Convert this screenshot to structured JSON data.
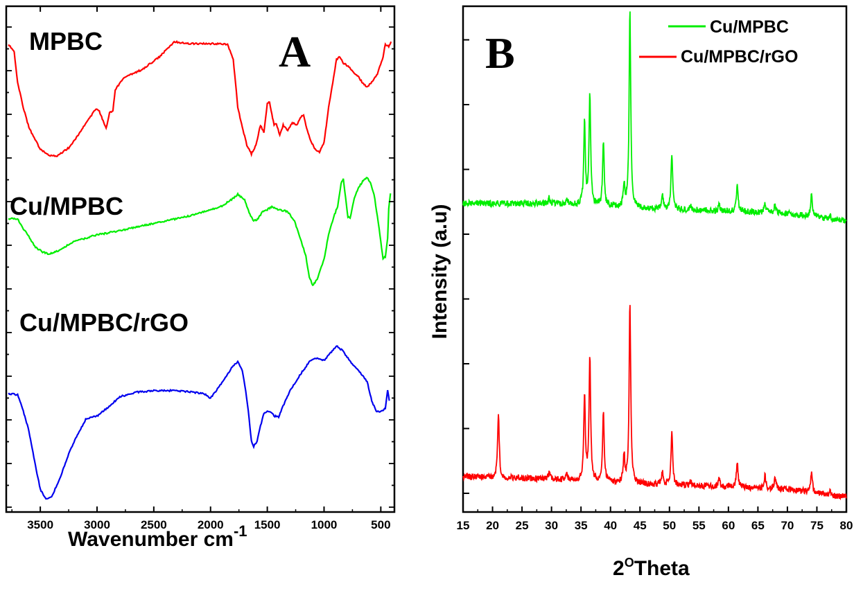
{
  "panels": {
    "a": {
      "letter": "A",
      "xlabel": "Wavenumber cm",
      "xlabel_sup": "-1"
    },
    "b": {
      "letter": "B",
      "ylabel": "Intensity (a.u)",
      "xlabel_pre": "2",
      "xlabel_sup": "O",
      "xlabel_post": "Theta"
    }
  },
  "chart_data": [
    {
      "panel": "A",
      "type": "line",
      "xlabel": "Wavenumber cm-1",
      "ylabel": "",
      "xlim": [
        3800,
        380
      ],
      "x_reversed": true,
      "ylim": [
        0,
        1
      ],
      "y_ticks_labeled": false,
      "x_ticks": [
        "3500",
        "3000",
        "2500",
        "2000",
        "1500",
        "1000",
        "500"
      ],
      "grid": false,
      "legend": "none",
      "annotations": [
        "MPBC",
        "Cu/MPBC",
        "Cu/MPBC/rGO"
      ],
      "series": [
        {
          "name": "MPBC",
          "color": "#ff0000",
          "points": [
            [
              3780,
              0.925
            ],
            [
              3730,
              0.91
            ],
            [
              3700,
              0.85
            ],
            [
              3650,
              0.8
            ],
            [
              3600,
              0.76
            ],
            [
              3500,
              0.717
            ],
            [
              3420,
              0.705
            ],
            [
              3350,
              0.704
            ],
            [
              3250,
              0.72
            ],
            [
              3150,
              0.75
            ],
            [
              3080,
              0.775
            ],
            [
              3010,
              0.797
            ],
            [
              2980,
              0.792
            ],
            [
              2940,
              0.77
            ],
            [
              2920,
              0.758
            ],
            [
              2890,
              0.79
            ],
            [
              2860,
              0.794
            ],
            [
              2840,
              0.835
            ],
            [
              2760,
              0.86
            ],
            [
              2600,
              0.875
            ],
            [
              2450,
              0.9
            ],
            [
              2320,
              0.93
            ],
            [
              2200,
              0.926
            ],
            [
              2000,
              0.926
            ],
            [
              1850,
              0.925
            ],
            [
              1800,
              0.895
            ],
            [
              1760,
              0.8
            ],
            [
              1720,
              0.76
            ],
            [
              1700,
              0.743
            ],
            [
              1680,
              0.725
            ],
            [
              1640,
              0.708
            ],
            [
              1600,
              0.725
            ],
            [
              1560,
              0.765
            ],
            [
              1530,
              0.75
            ],
            [
              1500,
              0.808
            ],
            [
              1480,
              0.81
            ],
            [
              1440,
              0.765
            ],
            [
              1420,
              0.768
            ],
            [
              1390,
              0.745
            ],
            [
              1360,
              0.765
            ],
            [
              1320,
              0.755
            ],
            [
              1280,
              0.77
            ],
            [
              1240,
              0.765
            ],
            [
              1210,
              0.78
            ],
            [
              1180,
              0.786
            ],
            [
              1160,
              0.765
            ],
            [
              1120,
              0.735
            ],
            [
              1070,
              0.714
            ],
            [
              1040,
              0.712
            ],
            [
              1000,
              0.73
            ],
            [
              960,
              0.8
            ],
            [
              930,
              0.84
            ],
            [
              890,
              0.895
            ],
            [
              860,
              0.9
            ],
            [
              830,
              0.888
            ],
            [
              780,
              0.88
            ],
            [
              740,
              0.868
            ],
            [
              700,
              0.862
            ],
            [
              660,
              0.848
            ],
            [
              620,
              0.84
            ],
            [
              580,
              0.85
            ],
            [
              530,
              0.866
            ],
            [
              480,
              0.9
            ],
            [
              460,
              0.925
            ],
            [
              430,
              0.92
            ],
            [
              410,
              0.93
            ]
          ]
        },
        {
          "name": "Cu/MPBC",
          "color": "#00ee00",
          "points": [
            [
              3780,
              0.58
            ],
            [
              3700,
              0.58
            ],
            [
              3650,
              0.56
            ],
            [
              3600,
              0.545
            ],
            [
              3550,
              0.525
            ],
            [
              3480,
              0.514
            ],
            [
              3420,
              0.51
            ],
            [
              3350,
              0.516
            ],
            [
              3200,
              0.535
            ],
            [
              3000,
              0.548
            ],
            [
              2800,
              0.556
            ],
            [
              2600,
              0.566
            ],
            [
              2400,
              0.575
            ],
            [
              2200,
              0.585
            ],
            [
              2000,
              0.597
            ],
            [
              1900,
              0.605
            ],
            [
              1800,
              0.62
            ],
            [
              1760,
              0.628
            ],
            [
              1700,
              0.618
            ],
            [
              1660,
              0.592
            ],
            [
              1620,
              0.575
            ],
            [
              1580,
              0.58
            ],
            [
              1540,
              0.595
            ],
            [
              1500,
              0.598
            ],
            [
              1460,
              0.603
            ],
            [
              1400,
              0.598
            ],
            [
              1320,
              0.594
            ],
            [
              1260,
              0.575
            ],
            [
              1200,
              0.535
            ],
            [
              1160,
              0.505
            ],
            [
              1130,
              0.465
            ],
            [
              1100,
              0.448
            ],
            [
              1060,
              0.46
            ],
            [
              1000,
              0.5
            ],
            [
              960,
              0.548
            ],
            [
              920,
              0.58
            ],
            [
              880,
              0.605
            ],
            [
              850,
              0.65
            ],
            [
              830,
              0.658
            ],
            [
              810,
              0.62
            ],
            [
              790,
              0.584
            ],
            [
              770,
              0.58
            ],
            [
              740,
              0.615
            ],
            [
              700,
              0.64
            ],
            [
              660,
              0.654
            ],
            [
              620,
              0.662
            ],
            [
              590,
              0.65
            ],
            [
              560,
              0.628
            ],
            [
              530,
              0.585
            ],
            [
              500,
              0.535
            ],
            [
              480,
              0.5
            ],
            [
              460,
              0.505
            ],
            [
              440,
              0.54
            ],
            [
              430,
              0.6
            ],
            [
              415,
              0.63
            ]
          ]
        },
        {
          "name": "Cu/MPBC/rGO",
          "color": "#0000ee",
          "points": [
            [
              3780,
              0.234
            ],
            [
              3700,
              0.232
            ],
            [
              3650,
              0.2
            ],
            [
              3600,
              0.16
            ],
            [
              3550,
              0.1
            ],
            [
              3500,
              0.045
            ],
            [
              3450,
              0.025
            ],
            [
              3400,
              0.03
            ],
            [
              3330,
              0.065
            ],
            [
              3250,
              0.115
            ],
            [
              3180,
              0.15
            ],
            [
              3100,
              0.183
            ],
            [
              3000,
              0.19
            ],
            [
              2900,
              0.207
            ],
            [
              2800,
              0.228
            ],
            [
              2650,
              0.237
            ],
            [
              2500,
              0.24
            ],
            [
              2300,
              0.24
            ],
            [
              2150,
              0.237
            ],
            [
              2050,
              0.233
            ],
            [
              2000,
              0.225
            ],
            [
              1900,
              0.255
            ],
            [
              1800,
              0.29
            ],
            [
              1760,
              0.297
            ],
            [
              1720,
              0.28
            ],
            [
              1690,
              0.24
            ],
            [
              1660,
              0.185
            ],
            [
              1640,
              0.14
            ],
            [
              1620,
              0.13
            ],
            [
              1590,
              0.14
            ],
            [
              1560,
              0.17
            ],
            [
              1530,
              0.195
            ],
            [
              1500,
              0.2
            ],
            [
              1470,
              0.198
            ],
            [
              1440,
              0.19
            ],
            [
              1400,
              0.188
            ],
            [
              1360,
              0.21
            ],
            [
              1300,
              0.24
            ],
            [
              1200,
              0.275
            ],
            [
              1120,
              0.3
            ],
            [
              1060,
              0.305
            ],
            [
              1000,
              0.3
            ],
            [
              950,
              0.313
            ],
            [
              890,
              0.328
            ],
            [
              840,
              0.32
            ],
            [
              760,
              0.295
            ],
            [
              680,
              0.275
            ],
            [
              620,
              0.258
            ],
            [
              580,
              0.22
            ],
            [
              540,
              0.2
            ],
            [
              500,
              0.198
            ],
            [
              460,
              0.205
            ],
            [
              440,
              0.24
            ],
            [
              425,
              0.22
            ]
          ]
        }
      ]
    },
    {
      "panel": "B",
      "type": "line",
      "xlabel": "2OTheta",
      "ylabel": "Intensity (a.u)",
      "xlim": [
        15,
        80
      ],
      "ylim": [
        0,
        1
      ],
      "y_ticks_labeled": false,
      "x_ticks": [
        "15",
        "20",
        "25",
        "30",
        "35",
        "40",
        "45",
        "50",
        "55",
        "60",
        "65",
        "70",
        "75",
        "80"
      ],
      "grid": false,
      "legend": "top-right",
      "series": [
        {
          "name": "Cu/MPBC",
          "color": "#00ee00",
          "baseline": [
            [
              15,
              0.61
            ],
            [
              30,
              0.61
            ],
            [
              45,
              0.6
            ],
            [
              60,
              0.595
            ],
            [
              70,
              0.59
            ],
            [
              80,
              0.575
            ]
          ],
          "peaks": [
            [
              29.6,
              0.013
            ],
            [
              32.6,
              0.012
            ],
            [
              35.6,
              0.165
            ],
            [
              36.5,
              0.218
            ],
            [
              38.8,
              0.125
            ],
            [
              42.3,
              0.045
            ],
            [
              43.3,
              0.39
            ],
            [
              48.8,
              0.032
            ],
            [
              50.4,
              0.112
            ],
            [
              53.6,
              0.01
            ],
            [
              58.4,
              0.012
            ],
            [
              61.5,
              0.055
            ],
            [
              66.2,
              0.02
            ],
            [
              67.9,
              0.018
            ],
            [
              74.1,
              0.048
            ],
            [
              77.2,
              0.008
            ]
          ]
        },
        {
          "name": "Cu/MPBC/rGO",
          "color": "#ff0000",
          "baseline": [
            [
              15,
              0.07
            ],
            [
              30,
              0.065
            ],
            [
              45,
              0.055
            ],
            [
              60,
              0.05
            ],
            [
              70,
              0.045
            ],
            [
              80,
              0.03
            ]
          ],
          "peaks": [
            [
              21.0,
              0.126
            ],
            [
              29.6,
              0.012
            ],
            [
              32.6,
              0.01
            ],
            [
              35.6,
              0.166
            ],
            [
              36.5,
              0.24
            ],
            [
              38.8,
              0.134
            ],
            [
              42.3,
              0.053
            ],
            [
              43.3,
              0.358
            ],
            [
              48.8,
              0.026
            ],
            [
              50.4,
              0.108
            ],
            [
              53.6,
              0.008
            ],
            [
              58.4,
              0.015
            ],
            [
              61.5,
              0.052
            ],
            [
              66.2,
              0.024
            ],
            [
              67.9,
              0.022
            ],
            [
              74.1,
              0.045
            ],
            [
              77.2,
              0.005
            ]
          ]
        }
      ]
    }
  ]
}
